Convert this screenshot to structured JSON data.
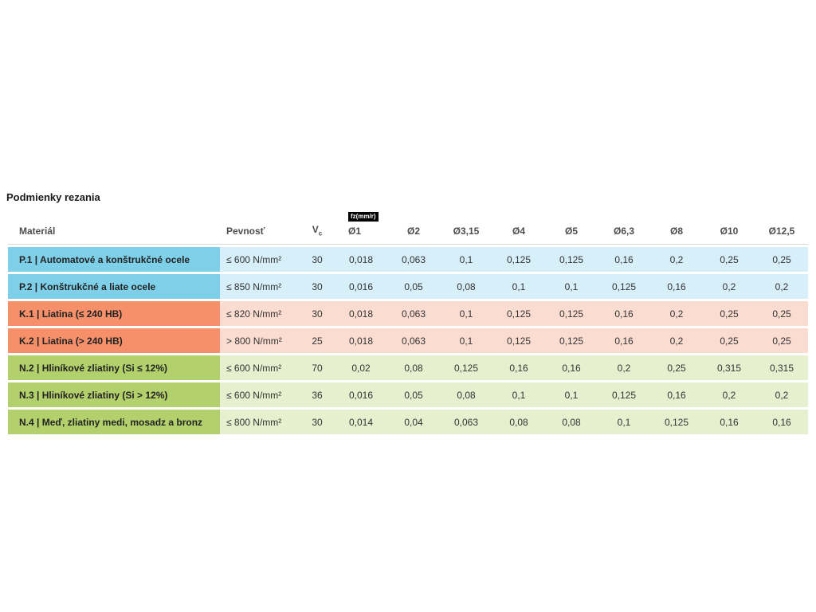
{
  "page": {
    "title": "Podmienky rezania"
  },
  "table": {
    "headers": {
      "material": "Materiál",
      "strength": "Pevnosť",
      "vc_main": "V",
      "vc_sub": "c",
      "fz_badge": "fz(mm/r)",
      "diameters": [
        "Ø1",
        "Ø2",
        "Ø3,15",
        "Ø4",
        "Ø5",
        "Ø6,3",
        "Ø8",
        "Ø10",
        "Ø12,5"
      ]
    },
    "rows": [
      {
        "group": "blue",
        "material": "P.1 | Automatové a konštrukčné ocele",
        "strength": "≤ 600 N/mm²",
        "vc": "30",
        "values": [
          "0,018",
          "0,063",
          "0,1",
          "0,125",
          "0,125",
          "0,16",
          "0,2",
          "0,25",
          "0,25"
        ]
      },
      {
        "group": "blue",
        "material": "P.2 | Konštrukčné a liate ocele",
        "strength": "≤ 850 N/mm²",
        "vc": "30",
        "values": [
          "0,016",
          "0,05",
          "0,08",
          "0,1",
          "0,1",
          "0,125",
          "0,16",
          "0,2",
          "0,2"
        ]
      },
      {
        "group": "orange",
        "material": "K.1 | Liatina (≤ 240 HB)",
        "strength": "≤ 820 N/mm²",
        "vc": "30",
        "values": [
          "0,018",
          "0,063",
          "0,1",
          "0,125",
          "0,125",
          "0,16",
          "0,2",
          "0,25",
          "0,25"
        ]
      },
      {
        "group": "orange",
        "material": "K.2 | Liatina (> 240 HB)",
        "strength": "> 800 N/mm²",
        "vc": "25",
        "values": [
          "0,018",
          "0,063",
          "0,1",
          "0,125",
          "0,125",
          "0,16",
          "0,2",
          "0,25",
          "0,25"
        ]
      },
      {
        "group": "green",
        "material": "N.2 | Hliníkové zliatiny (Si ≤ 12%)",
        "strength": "≤ 600 N/mm²",
        "vc": "70",
        "values": [
          "0,02",
          "0,08",
          "0,125",
          "0,16",
          "0,16",
          "0,2",
          "0,25",
          "0,315",
          "0,315"
        ]
      },
      {
        "group": "green",
        "material": "N.3 | Hliníkové zliatiny (Si > 12%)",
        "strength": "≤ 600 N/mm²",
        "vc": "36",
        "values": [
          "0,016",
          "0,05",
          "0,08",
          "0,1",
          "0,1",
          "0,125",
          "0,16",
          "0,2",
          "0,2"
        ]
      },
      {
        "group": "green",
        "material": "N.4 | Meď, zliatiny medi, mosadz a bronz",
        "strength": "≤ 800 N/mm²",
        "vc": "30",
        "values": [
          "0,014",
          "0,04",
          "0,063",
          "0,08",
          "0,08",
          "0,1",
          "0,125",
          "0,16",
          "0,16"
        ]
      }
    ],
    "colors": {
      "blue_label": "#7ecfe8",
      "blue_row": "#d6eff9",
      "orange_label": "#f5906b",
      "orange_row": "#fbdcd1",
      "green_label": "#b2d06c",
      "green_row": "#e6f0cf"
    }
  }
}
